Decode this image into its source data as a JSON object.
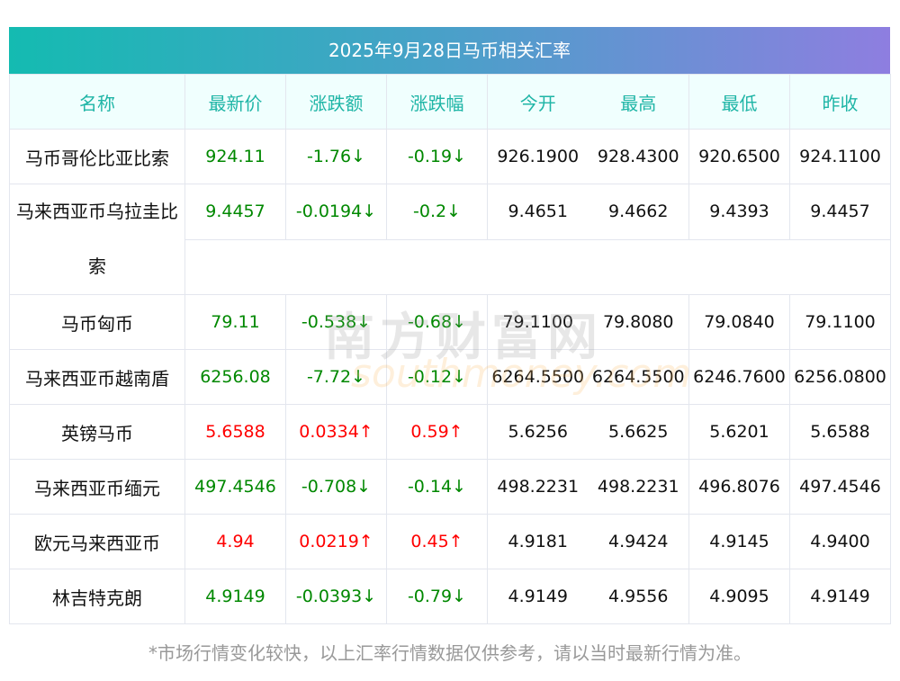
{
  "title": "2025年9月28日马币相关汇率",
  "columns": [
    "名称",
    "最新价",
    "涨跌额",
    "涨跌幅",
    "今开",
    "最高",
    "最低",
    "昨收"
  ],
  "rows": [
    {
      "name": "马币哥伦比亚比索",
      "latest": "924.11",
      "change": "-1.76↓",
      "pct": "-0.19↓",
      "open": "926.1900",
      "high": "928.4300",
      "low": "920.6500",
      "prev": "924.1100",
      "dir": "down"
    },
    {
      "name": "马来西亚币乌拉圭比索",
      "latest": "9.4457",
      "change": "-0.0194↓",
      "pct": "-0.2↓",
      "open": "9.4651",
      "high": "9.4662",
      "low": "9.4393",
      "prev": "9.4457",
      "dir": "down"
    },
    {
      "name": "马币匈币",
      "latest": "79.11",
      "change": "-0.538↓",
      "pct": "-0.68↓",
      "open": "79.1100",
      "high": "79.8080",
      "low": "79.0840",
      "prev": "79.1100",
      "dir": "down"
    },
    {
      "name": "马来西亚币越南盾",
      "latest": "6256.08",
      "change": "-7.72↓",
      "pct": "-0.12↓",
      "open": "6264.5500",
      "high": "6264.5500",
      "low": "6246.7600",
      "prev": "6256.0800",
      "dir": "down"
    },
    {
      "name": "英镑马币",
      "latest": "5.6588",
      "change": "0.0334↑",
      "pct": "0.59↑",
      "open": "5.6256",
      "high": "5.6625",
      "low": "5.6201",
      "prev": "5.6588",
      "dir": "up"
    },
    {
      "name": "马来西亚币缅元",
      "latest": "497.4546",
      "change": "-0.708↓",
      "pct": "-0.14↓",
      "open": "498.2231",
      "high": "498.2231",
      "low": "496.8076",
      "prev": "497.4546",
      "dir": "down"
    },
    {
      "name": "欧元马来西亚币",
      "latest": "4.94",
      "change": "0.0219↑",
      "pct": "0.45↑",
      "open": "4.9181",
      "high": "4.9424",
      "low": "4.9145",
      "prev": "4.9400",
      "dir": "up"
    },
    {
      "name": "林吉特克朗",
      "latest": "4.9149",
      "change": "-0.0393↓",
      "pct": "-0.79↓",
      "open": "4.9149",
      "high": "4.9556",
      "low": "4.9095",
      "prev": "4.9149",
      "dir": "down"
    }
  ],
  "watermark": {
    "cn": "南方财富网",
    "en": "southmoney.com"
  },
  "footer": "*市场行情变化较快，以上汇率行情数据仅供参考，请以当时最新行情为准。",
  "colors": {
    "up": "#ff0000",
    "down": "#008800",
    "header": "#1fb5a6"
  }
}
